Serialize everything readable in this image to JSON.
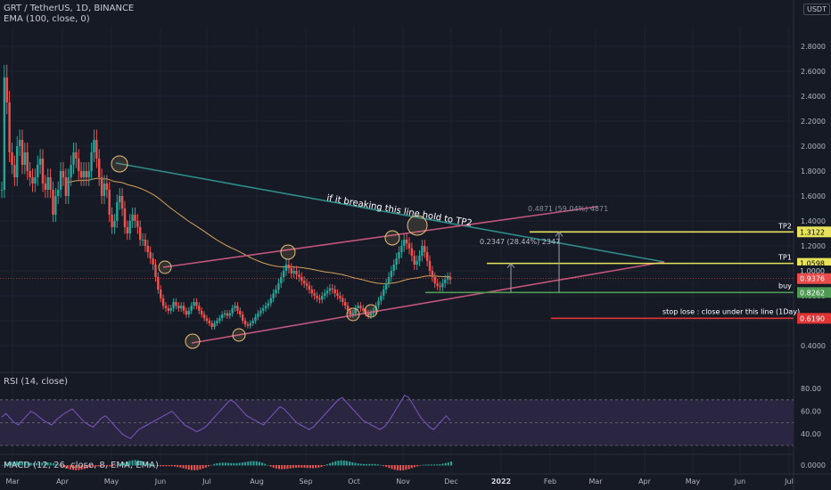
{
  "header": {
    "symbol_line": "GRT / TetherUS, 1D, BINANCE",
    "ema_line": "EMA (100, close, 0)",
    "currency_badge": "USDT",
    "rsi_label": "RSI (14, close)",
    "macd_label": "MACD (12, 26, close, 8, EMA, EMA)"
  },
  "colors": {
    "background": "#161a25",
    "up_candle": "#26a69a",
    "down_candle": "#ef5350",
    "ema": "#d6a25a",
    "channel": "#c2567a",
    "trendline": "#2f8c8c",
    "tp_line": "#e8e35a",
    "buy_line": "#4e9a52",
    "stop_line": "#e03434",
    "rsi_line": "#7e57c2",
    "rsi_band": "#2a2540"
  },
  "chart_data": [
    {
      "type": "candlestick",
      "x_axis_ticks": [
        "Mar",
        "Apr",
        "May",
        "Jun",
        "Jul",
        "Aug",
        "Sep",
        "Oct",
        "Nov",
        "Dec",
        "2022",
        "Feb",
        "Mar",
        "Apr",
        "May",
        "Jun",
        "Jul"
      ],
      "y_axis_ticks": [
        "2.8000",
        "2.6000",
        "2.4000",
        "2.2000",
        "2.0000",
        "1.8000",
        "1.6000",
        "1.4000",
        "1.2000",
        "1.0000",
        "0.8000",
        "0.6000",
        "0.4000"
      ],
      "ylim": [
        0.28,
        2.95
      ],
      "series": [
        {
          "name": "GRT / TetherUS",
          "ohlc_approx_closes": [
            1.65,
            2.55,
            2.35,
            1.95,
            1.85,
            1.75,
            2.0,
            2.05,
            1.85,
            1.95,
            1.8,
            1.75,
            1.7,
            1.75,
            1.85,
            1.9,
            1.7,
            1.65,
            1.75,
            1.65,
            1.45,
            1.6,
            1.65,
            1.8,
            1.75,
            1.6,
            1.75,
            1.85,
            1.95,
            1.9,
            1.8,
            1.75,
            1.8,
            1.75,
            1.8,
            1.95,
            2.05,
            1.9,
            1.75,
            1.6,
            1.7,
            1.65,
            1.45,
            1.35,
            1.4,
            1.55,
            1.6,
            1.5,
            1.35,
            1.3,
            1.4,
            1.45,
            1.4,
            1.35,
            1.25,
            1.25,
            1.2,
            1.15,
            1.1,
            1.05,
            0.95,
            0.85,
            0.78,
            0.72,
            0.7,
            0.68,
            0.7,
            0.75,
            0.72,
            0.7,
            0.72,
            0.68,
            0.65,
            0.68,
            0.72,
            0.75,
            0.72,
            0.68,
            0.65,
            0.62,
            0.6,
            0.58,
            0.55,
            0.58,
            0.6,
            0.62,
            0.65,
            0.66,
            0.64,
            0.66,
            0.7,
            0.72,
            0.68,
            0.65,
            0.6,
            0.57,
            0.56,
            0.58,
            0.6,
            0.63,
            0.66,
            0.68,
            0.7,
            0.72,
            0.74,
            0.78,
            0.82,
            0.85,
            0.9,
            0.95,
            1.0,
            1.05,
            1.02,
            0.98,
            1.0,
            0.97,
            0.95,
            0.92,
            0.9,
            0.88,
            0.85,
            0.82,
            0.8,
            0.78,
            0.77,
            0.8,
            0.82,
            0.84,
            0.86,
            0.85,
            0.82,
            0.8,
            0.78,
            0.75,
            0.72,
            0.68,
            0.65,
            0.66,
            0.7,
            0.72,
            0.7,
            0.68,
            0.66,
            0.64,
            0.66,
            0.68,
            0.72,
            0.76,
            0.8,
            0.85,
            0.9,
            0.95,
            1.0,
            1.05,
            1.1,
            1.15,
            1.2,
            1.25,
            1.22,
            1.18,
            1.12,
            1.05,
            1.08,
            1.12,
            1.2,
            1.15,
            1.08,
            1.0,
            0.95,
            0.9,
            0.88,
            0.87,
            0.9,
            0.93,
            0.95,
            0.93
          ]
        },
        {
          "name": "EMA (100, close, 0)"
        }
      ],
      "annotations": [
        {
          "text": "if it breaking this line hold to TP2"
        },
        {
          "text": "0.4871 (59.04%) 4871"
        },
        {
          "text": "0.2347 (28.44%) 2347"
        },
        {
          "text": "TP2",
          "level": 1.3122,
          "label": "1.3122"
        },
        {
          "text": "TP1",
          "level": 1.0598,
          "label": "1.0598"
        },
        {
          "text": "buy",
          "level": 0.8262,
          "label": "0.8262"
        },
        {
          "text": "stop lose : close under this line (1Day)",
          "level": 0.619,
          "label": "0.6190"
        }
      ],
      "last_price_label": "0.9376",
      "level_1_label": "1.0000"
    },
    {
      "type": "line",
      "name": "RSI (14, close)",
      "y_axis_ticks": [
        "80.00",
        "60.00",
        "40.00"
      ],
      "ylim": [
        20,
        90
      ],
      "band": [
        30,
        70
      ],
      "values": [
        55,
        58,
        54,
        50,
        48,
        52,
        56,
        60,
        58,
        55,
        52,
        50,
        48,
        52,
        55,
        58,
        60,
        62,
        58,
        54,
        50,
        48,
        46,
        50,
        54,
        56,
        52,
        48,
        44,
        40,
        38,
        36,
        40,
        44,
        46,
        48,
        50,
        52,
        54,
        56,
        58,
        60,
        56,
        52,
        48,
        46,
        44,
        42,
        44,
        46,
        50,
        54,
        58,
        62,
        66,
        70,
        68,
        64,
        60,
        56,
        54,
        52,
        50,
        48,
        52,
        56,
        60,
        64,
        62,
        58,
        54,
        50,
        48,
        46,
        44,
        46,
        50,
        54,
        58,
        62,
        66,
        70,
        72,
        68,
        64,
        60,
        56,
        52,
        50,
        48,
        46,
        44,
        46,
        50,
        56,
        62,
        68,
        74,
        72,
        66,
        60,
        54,
        50,
        46,
        44,
        48,
        52,
        56,
        52
      ]
    },
    {
      "type": "bar",
      "name": "MACD (12, 26, close, 8, EMA, EMA)",
      "y_axis_ticks": [
        "0.0000"
      ]
    }
  ]
}
